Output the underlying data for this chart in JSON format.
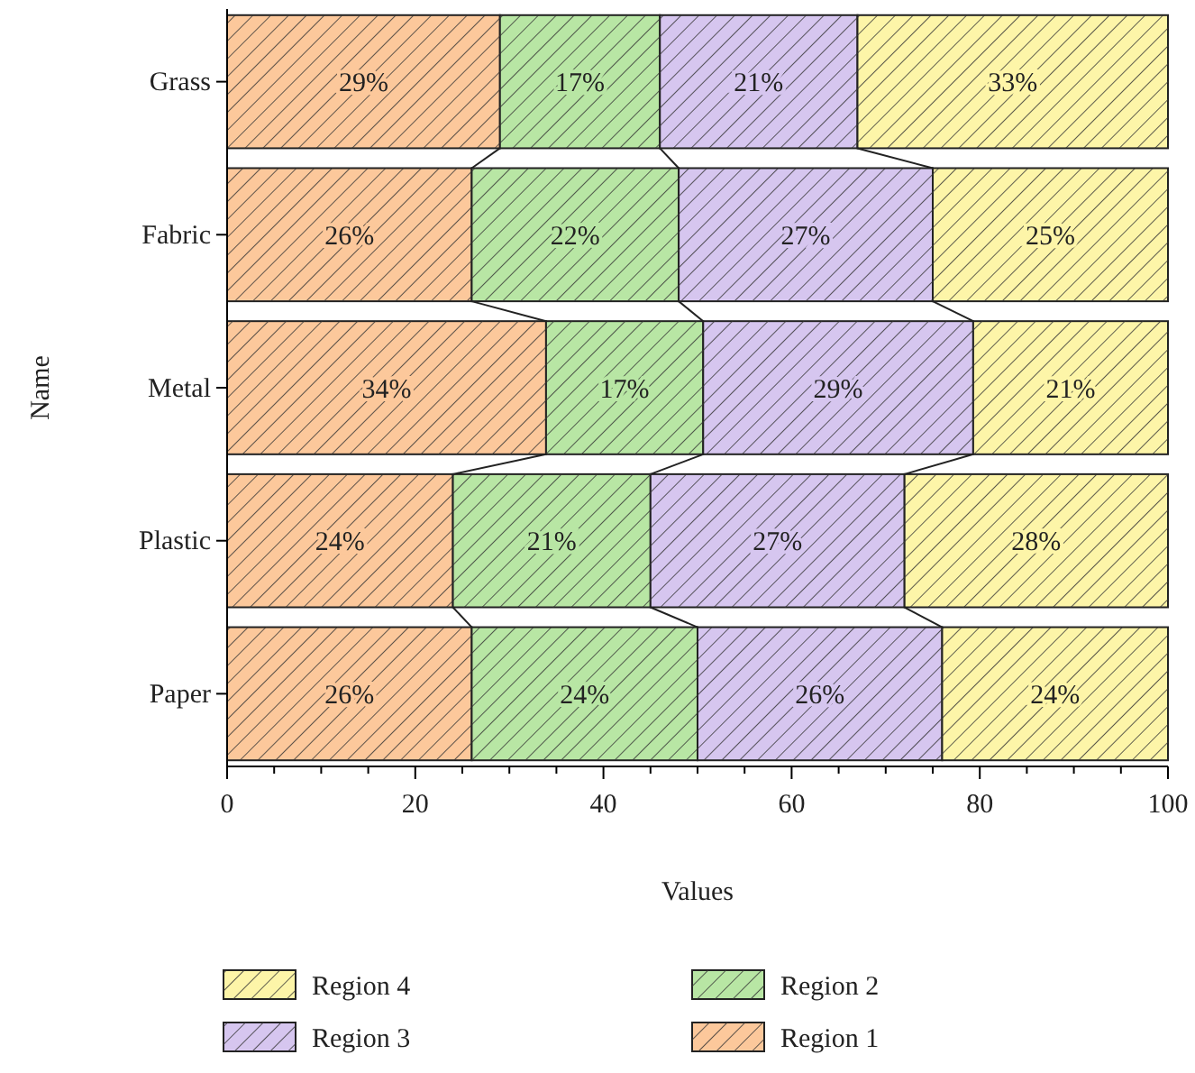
{
  "chart_data": {
    "type": "bar",
    "orientation": "horizontal",
    "stacked": true,
    "xlabel": "Values",
    "ylabel": "Name",
    "categories": [
      "Grass",
      "Fabric",
      "Metal",
      "Plastic",
      "Paper"
    ],
    "series": [
      {
        "name": "Region 1",
        "color": "#fcc89b",
        "values": [
          29,
          26,
          33.9,
          24,
          26
        ],
        "value_labels": [
          "29%",
          "26%",
          "34%",
          "24%",
          "26%"
        ]
      },
      {
        "name": "Region 2",
        "color": "#b8e6a4",
        "values": [
          17,
          22,
          16.7,
          21,
          24
        ],
        "value_labels": [
          "17%",
          "22%",
          "17%",
          "21%",
          "24%"
        ]
      },
      {
        "name": "Region 3",
        "color": "#d6c6ef",
        "values": [
          21,
          27,
          28.7,
          27,
          26
        ],
        "value_labels": [
          "21%",
          "27%",
          "29%",
          "27%",
          "26%"
        ]
      },
      {
        "name": "Region 4",
        "color": "#fdf5a8",
        "values": [
          33,
          25,
          20.7,
          28,
          24
        ],
        "value_labels": [
          "33%",
          "25%",
          "21%",
          "28%",
          "24%"
        ]
      }
    ],
    "xlim": [
      0,
      100
    ],
    "xticks": [
      0,
      {
        "value": 5,
        "label": null
      },
      {
        "value": 10,
        "label": null
      },
      {
        "value": 15,
        "label": null
      },
      20,
      {
        "value": 25,
        "label": null
      },
      {
        "value": 30,
        "label": null
      },
      {
        "value": 35,
        "label": null
      },
      40,
      {
        "value": 45,
        "label": null
      },
      {
        "value": 50,
        "label": null
      },
      {
        "value": 55,
        "label": null
      },
      60,
      {
        "value": 65,
        "label": null
      },
      {
        "value": 70,
        "label": null
      },
      {
        "value": 75,
        "label": null
      },
      80,
      {
        "value": 85,
        "label": null
      },
      {
        "value": 90,
        "label": null
      },
      {
        "value": 95,
        "label": null
      },
      100
    ],
    "grid": false,
    "legend": "bottom"
  }
}
